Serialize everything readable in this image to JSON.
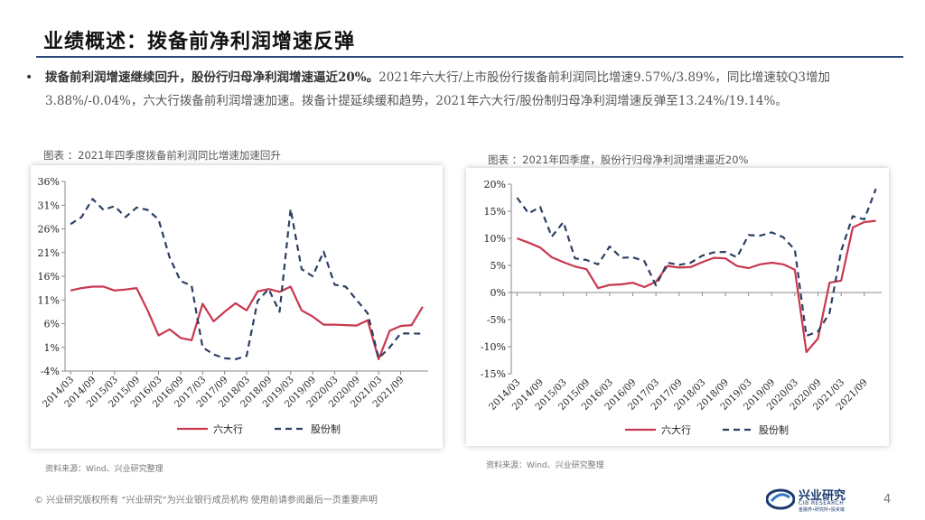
{
  "header": {
    "title": "业绩概述：拨备前净利润增速反弹"
  },
  "body": {
    "bullet": "•",
    "bold_text": "拨备前利润增速继续回升，股份行归母净利润增速逼近20%。",
    "text": "2021年六大行/上市股份行拨备前利润同比增速9.57%/3.89%，同比增速较Q3增加3.88%/-0.04%，六大行拨备前利润增速加速。拨备计提延续缓和趋势，2021年六大行/股份制归母净利润增速反弹至13.24%/19.14%。"
  },
  "left_caption": "图表 ：2021年四季度拨备前利润同比增速加速回升",
  "right_caption": "图表 ：2021年四季度，股份行归母净利润增速逼近20%",
  "left_source": "资料来源：Wind、兴业研究整理",
  "right_source": "资料来源：Wind、兴业研究整理",
  "footer": {
    "text": "© 兴业研究版权所有 “兴业研究”为兴业银行成员机构 使用前请参阅最后一页重要声明",
    "page": "4"
  },
  "logo": {
    "name": "兴业研究",
    "sub": "CIB RESEARCH",
    "sub2": "金融界•研究所•投资端"
  },
  "colors": {
    "big_six": "#c8374f",
    "joint_stock": "#2b3f63",
    "title_rule": "#2b4a7a"
  },
  "chart_data": [
    {
      "type": "line",
      "title": "",
      "ylim": [
        -4,
        36
      ],
      "yticks": [
        "36%",
        "31%",
        "26%",
        "21%",
        "16%",
        "11%",
        "6%",
        "1%",
        "-4%"
      ],
      "ytick_values": [
        36,
        31,
        26,
        21,
        16,
        11,
        6,
        1,
        -4
      ],
      "x_tick_labels": [
        "2014/03",
        "2014/09",
        "2015/03",
        "2015/09",
        "2016/03",
        "2016/09",
        "2017/03",
        "2017/09",
        "2018/03",
        "2018/09",
        "2019/03",
        "2019/09",
        "2020/03",
        "2020/09",
        "2021/03",
        "2021/09"
      ],
      "legend_position": "bottom",
      "series": [
        {
          "name": "六大行",
          "style": "solid",
          "values": [
            13,
            13.5,
            13.8,
            13.8,
            13,
            13.2,
            13.5,
            8.8,
            3.5,
            4.8,
            3,
            2.5,
            10.2,
            6.5,
            8.5,
            10.3,
            8.8,
            12.8,
            13.3,
            12.7,
            13.8,
            8.8,
            7.5,
            5.8,
            5.8,
            5.7,
            5.6,
            6.7,
            -1.5,
            4.5,
            5.5,
            5.7,
            9.57
          ]
        },
        {
          "name": "股份制",
          "style": "dashed",
          "values": [
            27,
            28.5,
            32.3,
            30,
            30.8,
            28.5,
            30.5,
            30,
            28,
            20,
            15,
            14,
            1,
            -0.5,
            -1.3,
            -1.5,
            -0.8,
            10.8,
            13.3,
            8.5,
            30.2,
            17.5,
            16,
            21.2,
            14.2,
            13.8,
            11,
            8.2,
            -1.3,
            1,
            3.93,
            3.93,
            3.89
          ]
        }
      ]
    },
    {
      "type": "line",
      "title": "",
      "ylim": [
        -15,
        20
      ],
      "yticks": [
        "20%",
        "15%",
        "10%",
        "5%",
        "0%",
        "-5%",
        "-10%",
        "-15%"
      ],
      "ytick_values": [
        20,
        15,
        10,
        5,
        0,
        -5,
        -10,
        -15
      ],
      "x_tick_labels": [
        "2014/03",
        "2014/09",
        "2015/03",
        "2015/09",
        "2016/03",
        "2016/09",
        "2017/03",
        "2017/09",
        "2018/03",
        "2018/09",
        "2019/03",
        "2019/09",
        "2020/03",
        "2020/09",
        "2021/03",
        "2021/09"
      ],
      "legend_position": "bottom",
      "series": [
        {
          "name": "六大行",
          "style": "solid",
          "values": [
            10,
            9.2,
            8.3,
            6.5,
            5.6,
            4.8,
            4.3,
            0.8,
            1.4,
            1.5,
            1.8,
            1,
            2,
            4.9,
            4.6,
            4.7,
            5.6,
            6.4,
            6.3,
            4.9,
            4.5,
            5.2,
            5.5,
            5.2,
            4.2,
            -11,
            -8.5,
            1.8,
            2.2,
            12,
            13,
            13.24
          ]
        },
        {
          "name": "股份制",
          "style": "dashed",
          "values": [
            17.5,
            14.6,
            15.8,
            10.3,
            13,
            6.3,
            6,
            5.2,
            8.5,
            6.4,
            6.5,
            5.8,
            1.3,
            5.5,
            5.1,
            5.5,
            6.8,
            7.4,
            7.5,
            6.5,
            10.6,
            10.5,
            11.1,
            10.2,
            7.9,
            -8,
            -7.2,
            -3.8,
            7.7,
            14.1,
            13.5,
            19.14
          ]
        }
      ]
    }
  ]
}
